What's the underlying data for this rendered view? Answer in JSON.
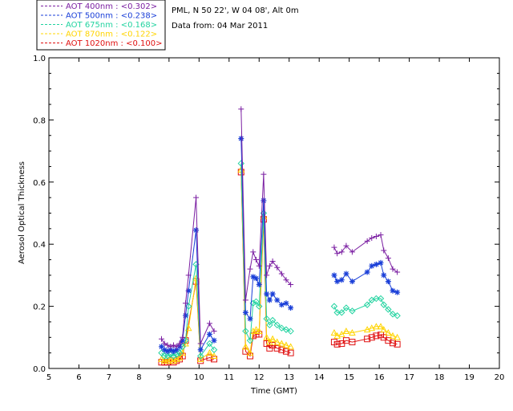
{
  "header": {
    "site": "PML, N 50 22', W 04 08', Alt 0m",
    "date": "Data from: 04 Mar 2011"
  },
  "chart_data": {
    "type": "scatter",
    "xlabel": "Time (GMT)",
    "ylabel": "Aerosol Optical Thickness",
    "xlim": [
      5,
      20
    ],
    "ylim": [
      0,
      1.0
    ],
    "xticks": [
      "5",
      "6",
      "7",
      "8",
      "9",
      "10",
      "11",
      "12",
      "13",
      "14",
      "15",
      "16",
      "17",
      "18",
      "19",
      "20"
    ],
    "yticks": [
      "0.0",
      "0.2",
      "0.4",
      "0.6",
      "0.8",
      "1.0"
    ],
    "legend_position": "top-left",
    "series": [
      {
        "name": "AOT  400nm : <0.302>",
        "color": "#7b1fa2",
        "marker": "plus",
        "points": [
          [
            8.75,
            0.095
          ],
          [
            8.85,
            0.08
          ],
          [
            8.95,
            0.075
          ],
          [
            9.05,
            0.07
          ],
          [
            9.15,
            0.075
          ],
          [
            9.25,
            0.07
          ],
          [
            9.35,
            0.08
          ],
          [
            9.45,
            0.1
          ],
          [
            9.55,
            0.21
          ],
          [
            9.65,
            0.3
          ],
          [
            9.9,
            0.55
          ],
          [
            10.05,
            0.08
          ],
          [
            10.35,
            0.145
          ],
          [
            10.5,
            0.12
          ],
          [
            11.4,
            0.835
          ],
          [
            11.55,
            0.22
          ],
          [
            11.7,
            0.32
          ],
          [
            11.8,
            0.375
          ],
          [
            11.9,
            0.35
          ],
          [
            12.0,
            0.33
          ],
          [
            12.15,
            0.625
          ],
          [
            12.25,
            0.3
          ],
          [
            12.35,
            0.33
          ],
          [
            12.45,
            0.345
          ],
          [
            12.6,
            0.325
          ],
          [
            12.75,
            0.305
          ],
          [
            12.9,
            0.285
          ],
          [
            13.05,
            0.27
          ],
          [
            14.5,
            0.39
          ],
          [
            14.6,
            0.37
          ],
          [
            14.75,
            0.375
          ],
          [
            14.9,
            0.395
          ],
          [
            15.1,
            0.375
          ],
          [
            15.6,
            0.41
          ],
          [
            15.75,
            0.42
          ],
          [
            15.9,
            0.425
          ],
          [
            16.05,
            0.43
          ],
          [
            16.15,
            0.38
          ],
          [
            16.3,
            0.355
          ],
          [
            16.45,
            0.32
          ],
          [
            16.6,
            0.31
          ]
        ]
      },
      {
        "name": "AOT  500nm : <0.238>",
        "color": "#1a3fd8",
        "marker": "asterisk",
        "points": [
          [
            8.75,
            0.07
          ],
          [
            8.85,
            0.06
          ],
          [
            8.95,
            0.055
          ],
          [
            9.05,
            0.06
          ],
          [
            9.15,
            0.055
          ],
          [
            9.25,
            0.06
          ],
          [
            9.35,
            0.07
          ],
          [
            9.45,
            0.09
          ],
          [
            9.55,
            0.17
          ],
          [
            9.65,
            0.25
          ],
          [
            9.9,
            0.445
          ],
          [
            10.05,
            0.06
          ],
          [
            10.35,
            0.11
          ],
          [
            10.5,
            0.09
          ],
          [
            11.4,
            0.74
          ],
          [
            11.55,
            0.18
          ],
          [
            11.7,
            0.16
          ],
          [
            11.8,
            0.295
          ],
          [
            11.9,
            0.29
          ],
          [
            12.0,
            0.27
          ],
          [
            12.15,
            0.54
          ],
          [
            12.25,
            0.24
          ],
          [
            12.35,
            0.22
          ],
          [
            12.45,
            0.24
          ],
          [
            12.6,
            0.22
          ],
          [
            12.75,
            0.205
          ],
          [
            12.9,
            0.21
          ],
          [
            13.05,
            0.195
          ],
          [
            14.5,
            0.3
          ],
          [
            14.6,
            0.28
          ],
          [
            14.75,
            0.285
          ],
          [
            14.9,
            0.305
          ],
          [
            15.1,
            0.28
          ],
          [
            15.6,
            0.31
          ],
          [
            15.75,
            0.33
          ],
          [
            15.9,
            0.335
          ],
          [
            16.05,
            0.34
          ],
          [
            16.15,
            0.3
          ],
          [
            16.3,
            0.28
          ],
          [
            16.45,
            0.25
          ],
          [
            16.6,
            0.245
          ]
        ]
      },
      {
        "name": "AOT  675nm : <0.168>",
        "color": "#22d3a0",
        "marker": "diamond",
        "points": [
          [
            8.75,
            0.05
          ],
          [
            8.85,
            0.04
          ],
          [
            8.95,
            0.04
          ],
          [
            9.05,
            0.045
          ],
          [
            9.15,
            0.04
          ],
          [
            9.25,
            0.045
          ],
          [
            9.35,
            0.05
          ],
          [
            9.45,
            0.07
          ],
          [
            9.55,
            0.09
          ],
          [
            9.65,
            0.2
          ],
          [
            9.9,
            0.335
          ],
          [
            10.05,
            0.04
          ],
          [
            10.35,
            0.08
          ],
          [
            10.5,
            0.06
          ],
          [
            11.4,
            0.66
          ],
          [
            11.55,
            0.12
          ],
          [
            11.7,
            0.09
          ],
          [
            11.8,
            0.21
          ],
          [
            11.9,
            0.215
          ],
          [
            12.0,
            0.2
          ],
          [
            12.15,
            0.5
          ],
          [
            12.25,
            0.16
          ],
          [
            12.35,
            0.14
          ],
          [
            12.45,
            0.155
          ],
          [
            12.6,
            0.14
          ],
          [
            12.75,
            0.13
          ],
          [
            12.9,
            0.125
          ],
          [
            13.05,
            0.12
          ],
          [
            14.5,
            0.2
          ],
          [
            14.6,
            0.18
          ],
          [
            14.75,
            0.18
          ],
          [
            14.9,
            0.195
          ],
          [
            15.1,
            0.185
          ],
          [
            15.6,
            0.205
          ],
          [
            15.75,
            0.22
          ],
          [
            15.9,
            0.225
          ],
          [
            16.05,
            0.225
          ],
          [
            16.15,
            0.205
          ],
          [
            16.3,
            0.19
          ],
          [
            16.45,
            0.175
          ],
          [
            16.6,
            0.17
          ]
        ]
      },
      {
        "name": "AOT  870nm : <0.122>",
        "color": "#ffd400",
        "marker": "triangle",
        "points": [
          [
            8.75,
            0.03
          ],
          [
            8.85,
            0.025
          ],
          [
            8.95,
            0.025
          ],
          [
            9.05,
            0.03
          ],
          [
            9.15,
            0.025
          ],
          [
            9.25,
            0.03
          ],
          [
            9.35,
            0.035
          ],
          [
            9.45,
            0.05
          ],
          [
            9.55,
            0.08
          ],
          [
            9.65,
            0.13
          ],
          [
            9.9,
            0.29
          ],
          [
            10.05,
            0.03
          ],
          [
            10.35,
            0.05
          ],
          [
            10.5,
            0.04
          ],
          [
            11.4,
            0.64
          ],
          [
            11.55,
            0.07
          ],
          [
            11.7,
            0.05
          ],
          [
            11.8,
            0.12
          ],
          [
            11.9,
            0.125
          ],
          [
            12.0,
            0.12
          ],
          [
            12.15,
            0.49
          ],
          [
            12.25,
            0.1
          ],
          [
            12.35,
            0.085
          ],
          [
            12.45,
            0.095
          ],
          [
            12.6,
            0.085
          ],
          [
            12.75,
            0.08
          ],
          [
            12.9,
            0.075
          ],
          [
            13.05,
            0.07
          ],
          [
            14.5,
            0.115
          ],
          [
            14.6,
            0.105
          ],
          [
            14.75,
            0.11
          ],
          [
            14.9,
            0.12
          ],
          [
            15.1,
            0.115
          ],
          [
            15.6,
            0.125
          ],
          [
            15.75,
            0.13
          ],
          [
            15.9,
            0.135
          ],
          [
            16.05,
            0.135
          ],
          [
            16.15,
            0.125
          ],
          [
            16.3,
            0.115
          ],
          [
            16.45,
            0.105
          ],
          [
            16.6,
            0.1
          ]
        ]
      },
      {
        "name": "AOT 1020nm : <0.100>",
        "color": "#e01010",
        "marker": "square",
        "points": [
          [
            8.75,
            0.02
          ],
          [
            8.85,
            0.02
          ],
          [
            8.95,
            0.02
          ],
          [
            9.05,
            0.025
          ],
          [
            9.15,
            0.02
          ],
          [
            9.25,
            0.025
          ],
          [
            9.35,
            0.03
          ],
          [
            9.45,
            0.04
          ],
          [
            9.55,
            0.09
          ],
          [
            9.9,
            0.28
          ],
          [
            10.05,
            0.025
          ],
          [
            10.35,
            0.035
          ],
          [
            10.5,
            0.03
          ],
          [
            11.4,
            0.632
          ],
          [
            11.55,
            0.055
          ],
          [
            11.7,
            0.04
          ],
          [
            11.8,
            0.105
          ],
          [
            11.9,
            0.11
          ],
          [
            12.0,
            0.11
          ],
          [
            12.15,
            0.48
          ],
          [
            12.25,
            0.08
          ],
          [
            12.35,
            0.065
          ],
          [
            12.45,
            0.075
          ],
          [
            12.6,
            0.065
          ],
          [
            12.75,
            0.06
          ],
          [
            12.9,
            0.055
          ],
          [
            13.05,
            0.05
          ],
          [
            14.5,
            0.085
          ],
          [
            14.6,
            0.078
          ],
          [
            14.75,
            0.08
          ],
          [
            14.9,
            0.09
          ],
          [
            15.1,
            0.085
          ],
          [
            15.6,
            0.095
          ],
          [
            15.75,
            0.1
          ],
          [
            15.9,
            0.105
          ],
          [
            16.05,
            0.108
          ],
          [
            16.15,
            0.1
          ],
          [
            16.3,
            0.09
          ],
          [
            16.45,
            0.082
          ],
          [
            16.6,
            0.078
          ]
        ]
      }
    ]
  }
}
